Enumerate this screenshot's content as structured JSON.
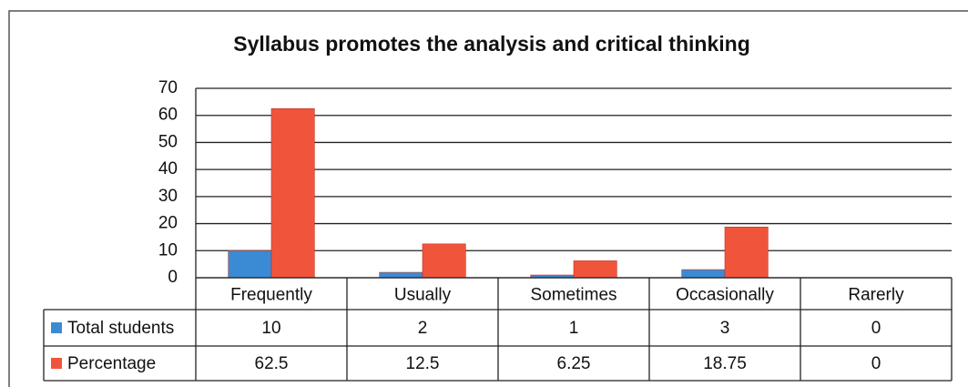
{
  "chart_data": {
    "type": "bar",
    "title": "Syllabus promotes the analysis and critical thinking",
    "categories": [
      "Frequently",
      "Usually",
      "Sometimes",
      "Occasionally",
      "Rarerly"
    ],
    "series": [
      {
        "name": "Total students",
        "color": "#3b8bd4",
        "values": [
          10,
          2,
          1,
          3,
          0
        ]
      },
      {
        "name": "Percentage",
        "color": "#f0553c",
        "values": [
          62.5,
          12.5,
          6.25,
          18.75,
          0
        ]
      }
    ],
    "ylim": [
      0,
      70
    ],
    "yticks": [
      0,
      10,
      20,
      30,
      40,
      50,
      60,
      70
    ],
    "grid": true,
    "data_table": true
  }
}
